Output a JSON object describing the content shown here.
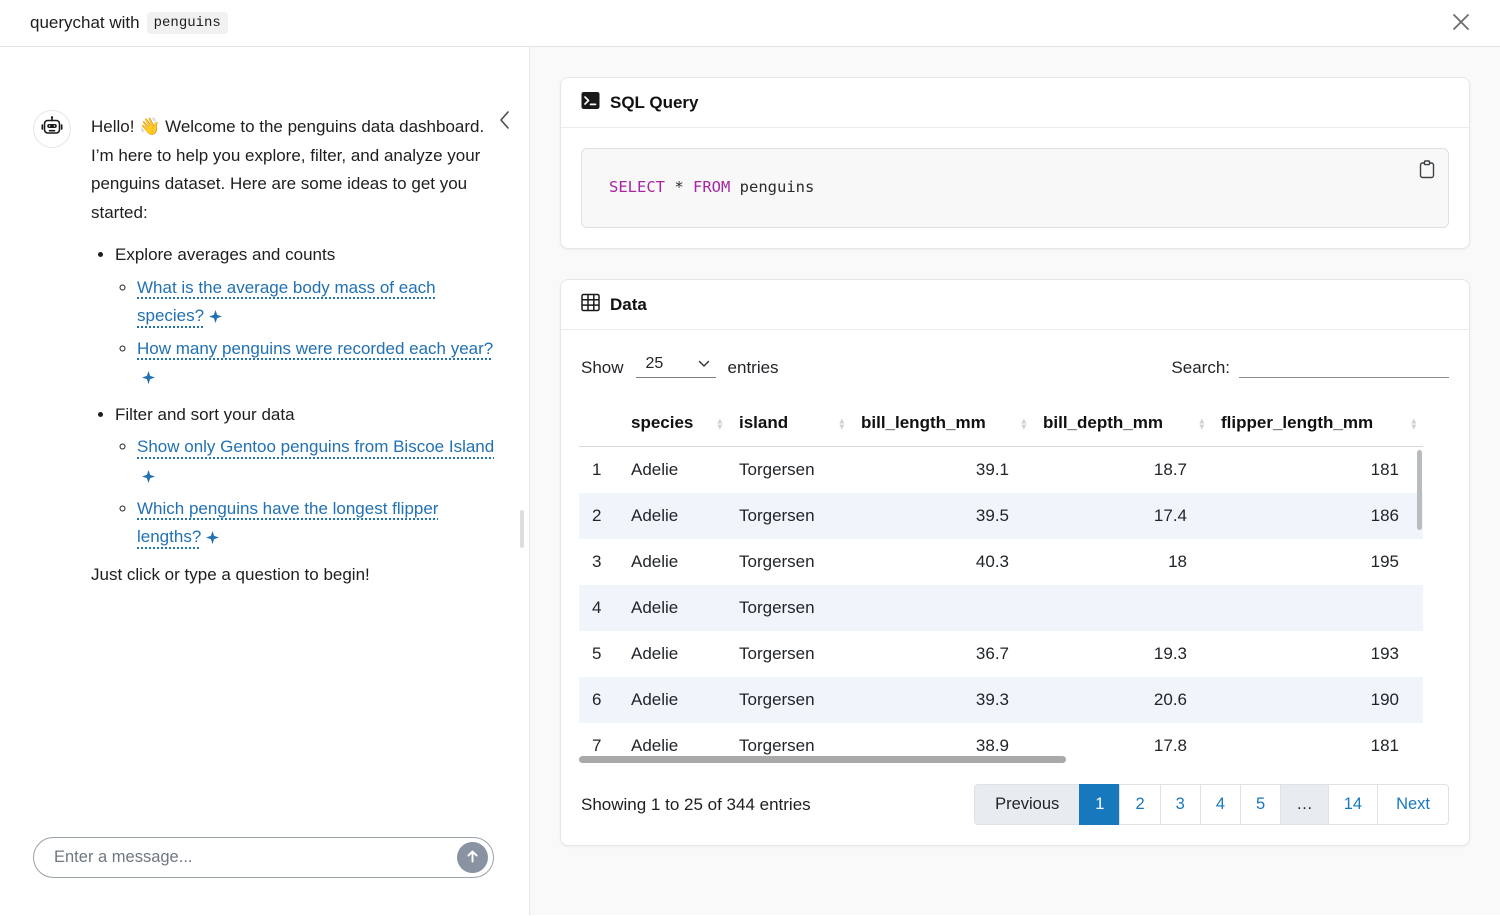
{
  "window": {
    "title_prefix": "querychat with",
    "dataset_chip": "penguins"
  },
  "icons": {
    "close": "close-x",
    "collapse": "chevron-left",
    "robot": "robot-head",
    "sparkle": "four-point-star",
    "send": "arrow-up",
    "terminal": "terminal-prompt",
    "copy": "clipboard",
    "table": "grid-table",
    "sort": "up-down-arrows",
    "select_chevron": "chevron-down"
  },
  "chat": {
    "greeting": "Hello! 👋 Welcome to the penguins data dashboard. I’m here to help you explore, filter, and analyze your penguins dataset. Here are some ideas to get you started:",
    "sections": [
      {
        "label": "Explore averages and counts",
        "links": [
          "What is the average body mass of each species?",
          "How many penguins were recorded each year?"
        ]
      },
      {
        "label": "Filter and sort your data",
        "links": [
          "Show only Gentoo penguins from Biscoe Island",
          "Which penguins have the longest flipper lengths?"
        ]
      }
    ],
    "closing": "Just click or type a question to begin!",
    "input_placeholder": "Enter a message..."
  },
  "sql_card": {
    "title": "SQL Query",
    "code_tokens": [
      {
        "t": "SELECT",
        "c": "kw"
      },
      {
        "t": " * ",
        "c": "plain"
      },
      {
        "t": "FROM",
        "c": "kw"
      },
      {
        "t": " penguins",
        "c": "plain"
      }
    ]
  },
  "data_card": {
    "title": "Data",
    "show_label": "Show",
    "page_length": "25",
    "entries_label": "entries",
    "search_label": "Search:",
    "search_value": "",
    "columns": [
      "species",
      "island",
      "bill_length_mm",
      "bill_depth_mm",
      "flipper_length_mm"
    ],
    "rows": [
      [
        "1",
        "Adelie",
        "Torgersen",
        "39.1",
        "18.7",
        "181"
      ],
      [
        "2",
        "Adelie",
        "Torgersen",
        "39.5",
        "17.4",
        "186"
      ],
      [
        "3",
        "Adelie",
        "Torgersen",
        "40.3",
        "18",
        "195"
      ],
      [
        "4",
        "Adelie",
        "Torgersen",
        "",
        "",
        ""
      ],
      [
        "5",
        "Adelie",
        "Torgersen",
        "36.7",
        "19.3",
        "193"
      ],
      [
        "6",
        "Adelie",
        "Torgersen",
        "39.3",
        "20.6",
        "190"
      ],
      [
        "7",
        "Adelie",
        "Torgersen",
        "38.9",
        "17.8",
        "181"
      ]
    ],
    "info": "Showing 1 to 25 of 344 entries",
    "pagination": [
      {
        "label": "Previous",
        "type": "disabled"
      },
      {
        "label": "1",
        "type": "active"
      },
      {
        "label": "2",
        "type": "page"
      },
      {
        "label": "3",
        "type": "page"
      },
      {
        "label": "4",
        "type": "page"
      },
      {
        "label": "5",
        "type": "page"
      },
      {
        "label": "…",
        "type": "disabled"
      },
      {
        "label": "14",
        "type": "page"
      },
      {
        "label": "Next",
        "type": "page"
      }
    ]
  },
  "colors": {
    "link": "#2271b3",
    "accent": "#1878be",
    "keyword": "#a626a4",
    "stripe": "#eff5fa"
  }
}
